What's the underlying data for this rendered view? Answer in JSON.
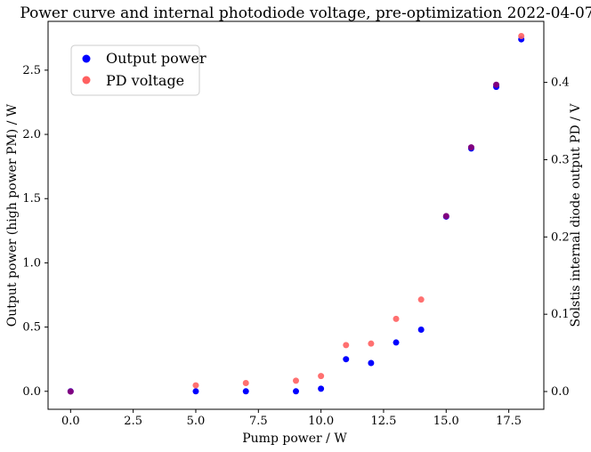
{
  "chart_data": {
    "type": "scatter",
    "title": "Power curve and internal photodiode voltage, pre-optimization 2022-04-07",
    "xlabel": "Pump power / W",
    "ylabel_left": "Output power (high power PM) / W",
    "ylabel_right": "Solstis internal diode output PD / V",
    "xlim": [
      -0.9,
      18.9
    ],
    "ylim_left": [
      -0.14,
      2.88
    ],
    "ylim_right": [
      -0.023,
      0.479
    ],
    "x_ticks": [
      0.0,
      2.5,
      5.0,
      7.5,
      10.0,
      12.5,
      15.0,
      17.5
    ],
    "y_left_ticks": [
      0.0,
      0.5,
      1.0,
      1.5,
      2.0,
      2.5
    ],
    "y_right_ticks": [
      0.0,
      0.1,
      0.2,
      0.3,
      0.4
    ],
    "grid": false,
    "legend_position": "top-left",
    "series": [
      {
        "name": "Output power",
        "axis": "left",
        "color": "#0000ff",
        "x": [
          0,
          5,
          7,
          9,
          10,
          11,
          12,
          13,
          14,
          15,
          16,
          17,
          18
        ],
        "y": [
          0.0,
          0.0,
          0.0,
          0.0,
          0.02,
          0.25,
          0.22,
          0.38,
          0.48,
          1.36,
          1.89,
          2.37,
          2.74
        ]
      },
      {
        "name": "PD voltage",
        "axis": "right",
        "color": "#ff6060",
        "x": [
          0,
          5,
          7,
          9,
          10,
          11,
          12,
          13,
          14,
          15,
          16,
          17,
          18
        ],
        "y": [
          0.0,
          0.008,
          0.011,
          0.014,
          0.02,
          0.06,
          0.062,
          0.094,
          0.119,
          0.227,
          0.316,
          0.397,
          0.46
        ]
      }
    ],
    "overlap_color": "#800080"
  }
}
